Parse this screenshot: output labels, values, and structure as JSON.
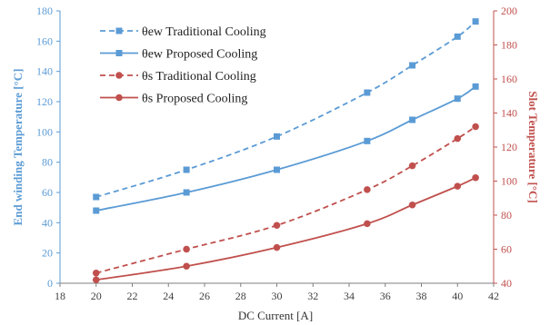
{
  "chart_data": {
    "type": "line",
    "title": "",
    "xlabel": "DC Current [A]",
    "ylabel_left": "End winding Temperature [°C]",
    "ylabel_right": "Slot Temperature [°C]",
    "xlim": [
      18,
      42
    ],
    "ylim_left": [
      0,
      180
    ],
    "ylim_right": [
      40,
      200
    ],
    "x_ticks": [
      18,
      20,
      22,
      24,
      26,
      28,
      30,
      32,
      34,
      36,
      38,
      40,
      42
    ],
    "y_left_ticks": [
      0,
      20,
      40,
      60,
      80,
      100,
      120,
      140,
      160,
      180
    ],
    "y_right_ticks": [
      40,
      60,
      80,
      100,
      120,
      140,
      160,
      180,
      200
    ],
    "grid": false,
    "legend_position": "top-left",
    "series": [
      {
        "name": "θew Traditional Cooling",
        "axis": "left",
        "color": "#5b9bd5",
        "dashed": true,
        "marker": "square",
        "x": [
          20,
          25,
          30,
          35,
          37.5,
          40,
          41
        ],
        "y": [
          57,
          75,
          97,
          126,
          144,
          163,
          173
        ]
      },
      {
        "name": "θew Proposed Cooling",
        "axis": "left",
        "color": "#5b9bd5",
        "dashed": false,
        "marker": "square",
        "x": [
          20,
          25,
          30,
          35,
          37.5,
          40,
          41
        ],
        "y": [
          48,
          60,
          75,
          94,
          108,
          122,
          130
        ]
      },
      {
        "name": "θs Traditional Cooling",
        "axis": "right",
        "color": "#c0504d",
        "dashed": true,
        "marker": "circle",
        "x": [
          20,
          25,
          30,
          35,
          37.5,
          40,
          41
        ],
        "y": [
          46,
          60,
          74,
          95,
          109,
          125,
          132
        ]
      },
      {
        "name": "θs Proposed Cooling",
        "axis": "right",
        "color": "#c0504d",
        "dashed": false,
        "marker": "circle",
        "x": [
          20,
          25,
          30,
          35,
          37.5,
          40,
          41
        ],
        "y": [
          42,
          50,
          61,
          75,
          86,
          97,
          102
        ]
      }
    ]
  }
}
